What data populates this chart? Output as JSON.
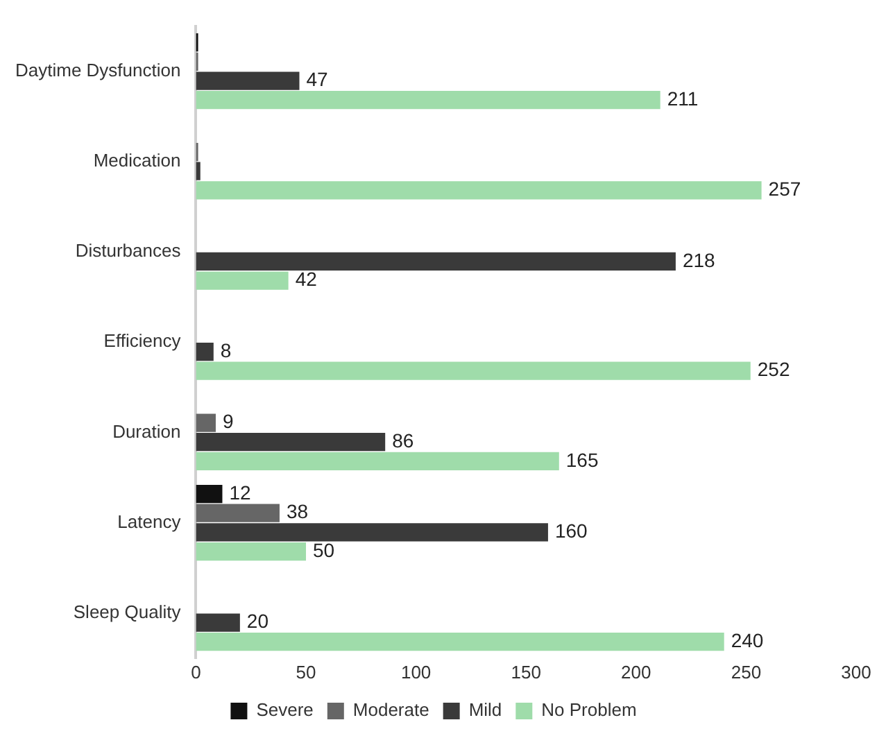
{
  "chart_data": {
    "type": "bar",
    "orientation": "horizontal",
    "categories": [
      "Daytime Dysfunction",
      "Medication",
      "Disturbances",
      "Efficiency",
      "Duration",
      "Latency",
      "Sleep Quality"
    ],
    "series": [
      {
        "name": "Severe",
        "color": "#111111",
        "values": [
          1,
          null,
          null,
          null,
          null,
          12,
          null
        ],
        "value_labels": [
          null,
          null,
          null,
          null,
          null,
          "12",
          null
        ]
      },
      {
        "name": "Moderate",
        "color": "#666666",
        "values": [
          1,
          1,
          null,
          null,
          9,
          38,
          null
        ],
        "value_labels": [
          null,
          null,
          null,
          null,
          "9",
          "38",
          null
        ]
      },
      {
        "name": "Mild",
        "color": "#3a3a3a",
        "values": [
          47,
          2,
          218,
          8,
          86,
          160,
          20
        ],
        "value_labels": [
          "47",
          null,
          "218",
          "8",
          "86",
          "160",
          "20"
        ]
      },
      {
        "name": "No Problem",
        "color": "#9fdcaa",
        "values": [
          211,
          257,
          42,
          252,
          165,
          50,
          240
        ],
        "value_labels": [
          "211",
          "257",
          "42",
          "252",
          "165",
          "50",
          "240"
        ]
      }
    ],
    "xlim": [
      0,
      300
    ],
    "xticks": [
      0,
      50,
      100,
      150,
      200,
      250,
      300
    ],
    "grid": false,
    "legend": "bottom"
  }
}
